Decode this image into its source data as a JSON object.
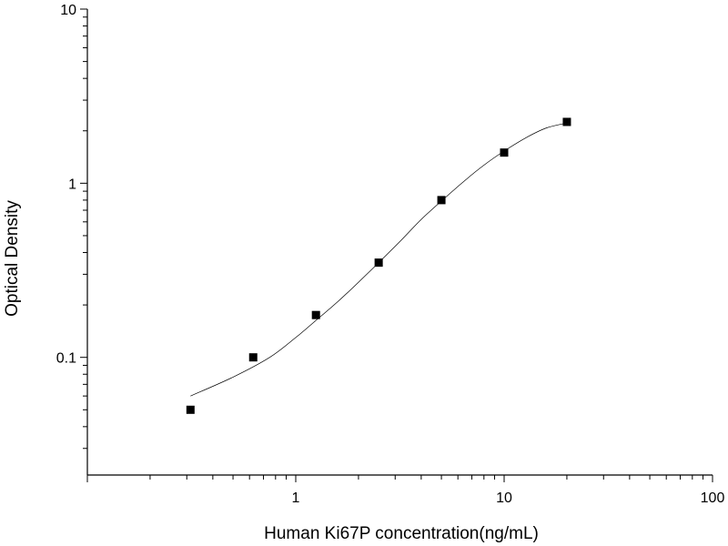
{
  "chart_data": {
    "type": "scatter",
    "x_scale": "log",
    "y_scale": "log",
    "xlim": [
      0.1,
      100
    ],
    "ylim": [
      0.0211,
      10
    ],
    "xlabel": "Human Ki67P concentration(ng/mL)",
    "ylabel": "Optical Density",
    "x_ticks": [
      1,
      10,
      100
    ],
    "x_tick_labels": [
      "1",
      "10",
      "100"
    ],
    "y_ticks": [
      0.1,
      1,
      10
    ],
    "y_tick_labels": [
      "0.1",
      "1",
      "10"
    ],
    "grid": false,
    "series": [
      {
        "points": [
          {
            "x": 0.3125,
            "y": 0.05
          },
          {
            "x": 0.625,
            "y": 0.1
          },
          {
            "x": 1.25,
            "y": 0.175
          },
          {
            "x": 2.5,
            "y": 0.35
          },
          {
            "x": 5,
            "y": 0.8
          },
          {
            "x": 10,
            "y": 1.5
          },
          {
            "x": 20,
            "y": 2.25
          }
        ],
        "marker": "square",
        "color": "#000000"
      }
    ],
    "fit_curve": {
      "type": "sigmoid",
      "color": "#000000",
      "points": [
        {
          "x": 0.3125,
          "y": 0.06
        },
        {
          "x": 0.5,
          "y": 0.077
        },
        {
          "x": 0.75,
          "y": 0.1
        },
        {
          "x": 1.0,
          "y": 0.13
        },
        {
          "x": 1.25,
          "y": 0.163
        },
        {
          "x": 1.6,
          "y": 0.21
        },
        {
          "x": 2.0,
          "y": 0.27
        },
        {
          "x": 2.5,
          "y": 0.35
        },
        {
          "x": 3.2,
          "y": 0.47
        },
        {
          "x": 4.0,
          "y": 0.62
        },
        {
          "x": 5.0,
          "y": 0.79
        },
        {
          "x": 6.5,
          "y": 1.04
        },
        {
          "x": 8.0,
          "y": 1.27
        },
        {
          "x": 10.0,
          "y": 1.53
        },
        {
          "x": 13.0,
          "y": 1.85
        },
        {
          "x": 16.0,
          "y": 2.08
        },
        {
          "x": 20.0,
          "y": 2.22
        }
      ]
    }
  }
}
